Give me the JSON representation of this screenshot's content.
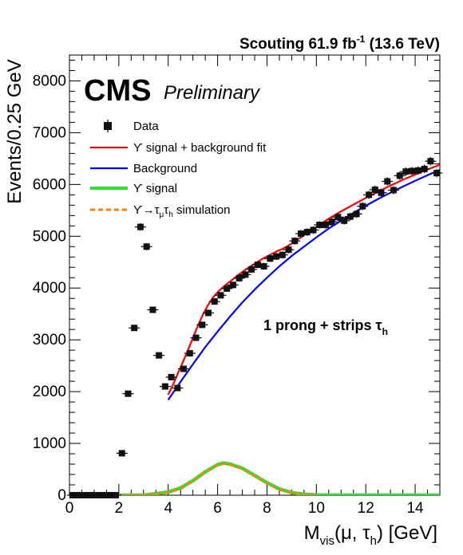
{
  "chart_data": {
    "type": "scatter",
    "header": {
      "experiment": "CMS",
      "status": "Preliminary",
      "lumi_left": "Scouting 61.9 fb",
      "lumi_sup": "-1",
      "lumi_right": " (13.6 TeV)"
    },
    "ylabel": "Events/0.25 GeV",
    "xlabel": {
      "base": "M",
      "sub": "vis",
      "mid": "(μ, τ",
      "sub2": "h",
      "end": ") [GeV]"
    },
    "xlim": [
      0,
      15
    ],
    "ylim": [
      0,
      8500
    ],
    "xticks": [
      0,
      2,
      4,
      6,
      8,
      10,
      12,
      14
    ],
    "yticks": [
      0,
      1000,
      2000,
      3000,
      4000,
      5000,
      6000,
      7000,
      8000
    ],
    "annotation": {
      "text": "1 prong + strips τ",
      "sub": "h"
    },
    "legend": [
      {
        "label": "Data",
        "style": "marker",
        "color": "#000000"
      },
      {
        "label": "ϒ signal + background fit",
        "style": "line",
        "color": "#ff0000"
      },
      {
        "label": "Background",
        "style": "line",
        "color": "#0000ff"
      },
      {
        "label": "ϒ signal",
        "style": "line",
        "color": "#33dd33"
      },
      {
        "label": "ϒ→τ",
        "sub1": "μ",
        "mid": "τ",
        "sub2": "h",
        "tail": " simulation",
        "style": "dashed",
        "color": "#ff7f0e"
      }
    ],
    "series": [
      {
        "name": "Data",
        "color": "#000000",
        "x": [
          0.125,
          0.375,
          0.625,
          0.875,
          1.125,
          1.375,
          1.625,
          1.875,
          2.125,
          2.375,
          2.625,
          2.875,
          3.125,
          3.375,
          3.625,
          3.875,
          4.125,
          4.375,
          4.625,
          4.875,
          5.125,
          5.375,
          5.625,
          5.875,
          6.125,
          6.375,
          6.625,
          6.875,
          7.125,
          7.375,
          7.625,
          7.875,
          8.125,
          8.375,
          8.625,
          8.875,
          9.125,
          9.375,
          9.625,
          9.875,
          10.125,
          10.375,
          10.625,
          10.875,
          11.125,
          11.375,
          11.625,
          11.875,
          12.125,
          12.375,
          12.625,
          12.875,
          13.125,
          13.375,
          13.625,
          13.875,
          14.125,
          14.375,
          14.625,
          14.875
        ],
        "y": [
          0,
          0,
          0,
          0,
          0,
          0,
          0,
          0,
          810,
          1960,
          3230,
          5180,
          4800,
          3580,
          2700,
          2100,
          2280,
          2070,
          2440,
          2740,
          3040,
          3290,
          3520,
          3740,
          3860,
          3990,
          4060,
          4190,
          4260,
          4360,
          4450,
          4420,
          4570,
          4610,
          4640,
          4740,
          4910,
          5050,
          5080,
          5120,
          5220,
          5220,
          5280,
          5370,
          5300,
          5380,
          5430,
          5580,
          5800,
          5900,
          5840,
          6060,
          5890,
          6170,
          6250,
          6260,
          6270,
          6300,
          6450,
          6220
        ]
      },
      {
        "name": "ϒ signal + background fit",
        "color": "#ff0000",
        "x": [
          4.0,
          4.2,
          4.4,
          4.6,
          4.8,
          5.0,
          5.2,
          5.4,
          5.6,
          5.8,
          6.0,
          6.2,
          6.4,
          6.6,
          6.8,
          7.0,
          7.2,
          7.4,
          7.6,
          7.8,
          8.0,
          8.2,
          8.4,
          8.6,
          8.8,
          9.0,
          9.5,
          10.0,
          10.5,
          11.0,
          11.5,
          12.0,
          12.5,
          13.0,
          13.5,
          14.0,
          14.5,
          15.0
        ],
        "y": [
          1940,
          2140,
          2360,
          2580,
          2800,
          3040,
          3270,
          3480,
          3660,
          3810,
          3920,
          4010,
          4090,
          4160,
          4240,
          4310,
          4380,
          4440,
          4500,
          4560,
          4610,
          4660,
          4710,
          4750,
          4800,
          4860,
          5020,
          5180,
          5340,
          5480,
          5610,
          5740,
          5860,
          5980,
          6090,
          6190,
          6290,
          6380
        ]
      },
      {
        "name": "Background",
        "color": "#0000ff",
        "x": [
          4.0,
          4.5,
          5.0,
          5.5,
          6.0,
          6.5,
          7.0,
          7.5,
          8.0,
          8.5,
          9.0,
          9.5,
          10.0,
          10.5,
          11.0,
          11.5,
          12.0,
          12.5,
          13.0,
          13.5,
          14.0,
          14.5,
          15.0
        ],
        "y": [
          1840,
          2190,
          2530,
          2860,
          3160,
          3450,
          3720,
          3970,
          4200,
          4420,
          4620,
          4800,
          4980,
          5150,
          5300,
          5450,
          5590,
          5720,
          5840,
          5960,
          6070,
          6180,
          6280
        ]
      },
      {
        "name": "ϒ signal",
        "color": "#33dd33",
        "x": [
          0,
          2,
          3,
          4,
          4.5,
          5,
          5.5,
          6,
          6.25,
          6.5,
          7,
          7.5,
          8,
          8.5,
          9,
          9.5,
          10,
          11,
          12,
          13,
          14,
          15
        ],
        "y": [
          0,
          0,
          0,
          60,
          140,
          280,
          450,
          590,
          620,
          600,
          520,
          380,
          240,
          120,
          50,
          18,
          5,
          0,
          0,
          0,
          0,
          0
        ]
      },
      {
        "name": "ϒ→τμτh simulation",
        "color": "#ff7f0e",
        "x": [
          0,
          1,
          2,
          3,
          4,
          4.5,
          5,
          5.5,
          6,
          6.25,
          6.5,
          7,
          7.5,
          8,
          8.5,
          9,
          9.5,
          10
        ],
        "y": [
          0,
          0,
          0,
          5,
          50,
          130,
          270,
          440,
          580,
          610,
          590,
          510,
          370,
          230,
          110,
          45,
          12,
          0
        ]
      }
    ]
  }
}
